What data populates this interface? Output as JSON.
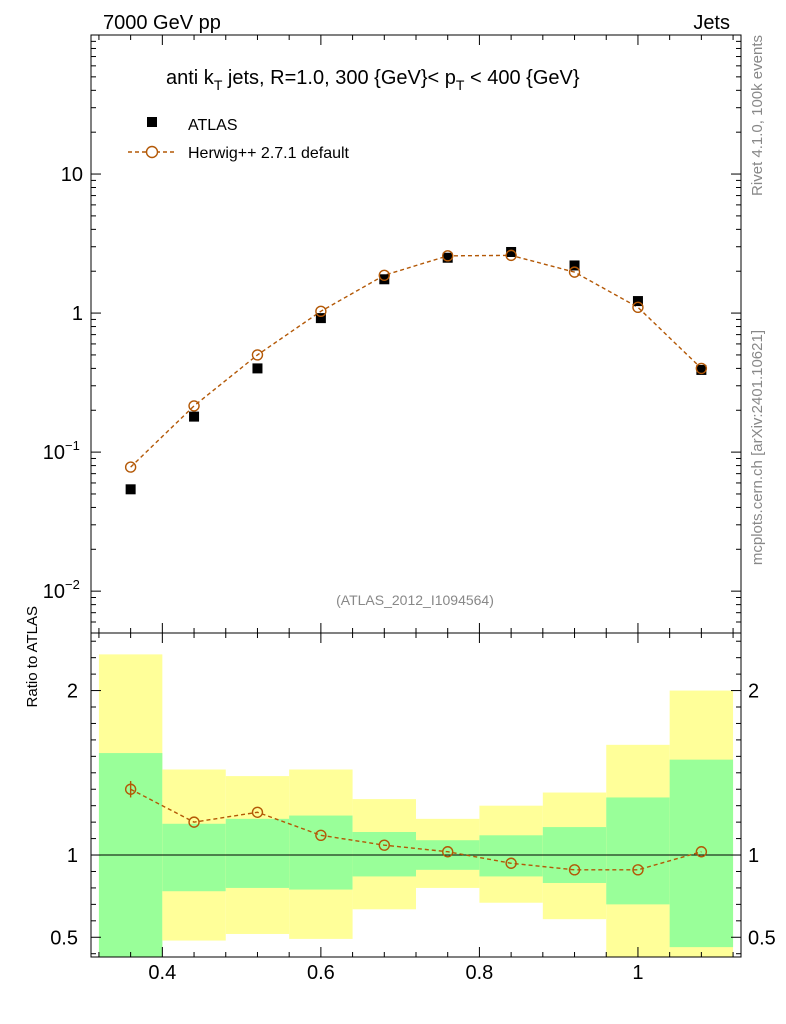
{
  "header": {
    "left": "7000 GeV pp",
    "right": "Jets"
  },
  "side_labels": {
    "rivet": "Rivet 4.1.0,  100k events",
    "mcplots": "mcplots.cern.ch [arXiv:2401.10621]"
  },
  "chart_data": {
    "type": "line",
    "title": "anti k_T jets, R=1.0,  300 {GeV}< p_T < 400 {GeV}",
    "title_parts": {
      "a": "anti k",
      "a_sub": "T",
      "b": " jets, R=1.0,  300 {GeV}< p",
      "b_sub": "T",
      "c": " < 400 {GeV}"
    },
    "watermark": "(ATLAS_2012_I1094564)",
    "xlim": [
      0.31,
      1.13
    ],
    "ylim_top": [
      0.005,
      100
    ],
    "ylim_ratio": [
      0.38,
      2.35
    ],
    "y_ticks_main": [
      {
        "value": 10,
        "label": "10",
        "sup": ""
      },
      {
        "value": 1,
        "label": "1",
        "sup": ""
      },
      {
        "value": 0.1,
        "label": "10",
        "sup": "−1"
      },
      {
        "value": 0.01,
        "label": "10",
        "sup": "−2"
      }
    ],
    "x_ticks": [
      {
        "value": 0.4,
        "label": "0.4"
      },
      {
        "value": 0.6,
        "label": "0.6"
      },
      {
        "value": 0.8,
        "label": "0.8"
      },
      {
        "value": 1.0,
        "label": "1"
      }
    ],
    "ratio_ticks": [
      {
        "value": 2,
        "label": "2"
      },
      {
        "value": 1,
        "label": "1"
      },
      {
        "value": 0.5,
        "label": "0.5"
      }
    ],
    "ratio_ylabel": "Ratio to ATLAS",
    "legend": {
      "data_label": "ATLAS",
      "mc_label": "Herwig++ 2.7.1 default",
      "placement": "top-left"
    },
    "bins": [
      {
        "low": 0.32,
        "high": 0.4,
        "x": 0.36,
        "data": 0.054,
        "mc": 0.078,
        "ratio": 1.4,
        "ratio_err": 0.05,
        "band_stat": [
          0.31,
          1.62
        ],
        "band_total": [
          0.31,
          2.22
        ]
      },
      {
        "low": 0.4,
        "high": 0.48,
        "x": 0.44,
        "data": 0.18,
        "mc": 0.215,
        "ratio": 1.2,
        "ratio_err": 0.0,
        "band_stat": [
          0.78,
          1.19
        ],
        "band_total": [
          0.48,
          1.52
        ]
      },
      {
        "low": 0.48,
        "high": 0.56,
        "x": 0.52,
        "data": 0.4,
        "mc": 0.5,
        "ratio": 1.26,
        "ratio_err": 0.0,
        "band_stat": [
          0.8,
          1.22
        ],
        "band_total": [
          0.52,
          1.48
        ]
      },
      {
        "low": 0.56,
        "high": 0.64,
        "x": 0.6,
        "data": 0.92,
        "mc": 1.03,
        "ratio": 1.12,
        "ratio_err": 0.0,
        "band_stat": [
          0.79,
          1.24
        ],
        "band_total": [
          0.49,
          1.52
        ]
      },
      {
        "low": 0.64,
        "high": 0.72,
        "x": 0.68,
        "data": 1.75,
        "mc": 1.87,
        "ratio": 1.06,
        "ratio_err": 0.0,
        "band_stat": [
          0.87,
          1.14
        ],
        "band_total": [
          0.67,
          1.34
        ]
      },
      {
        "low": 0.72,
        "high": 0.8,
        "x": 0.76,
        "data": 2.5,
        "mc": 2.58,
        "ratio": 1.02,
        "ratio_err": 0.0,
        "band_stat": [
          0.91,
          1.09
        ],
        "band_total": [
          0.8,
          1.22
        ]
      },
      {
        "low": 0.8,
        "high": 0.88,
        "x": 0.84,
        "data": 2.75,
        "mc": 2.6,
        "ratio": 0.95,
        "ratio_err": 0.0,
        "band_stat": [
          0.87,
          1.12
        ],
        "band_total": [
          0.71,
          1.3
        ]
      },
      {
        "low": 0.88,
        "high": 0.96,
        "x": 0.92,
        "data": 2.2,
        "mc": 1.97,
        "ratio": 0.91,
        "ratio_err": 0.0,
        "band_stat": [
          0.83,
          1.17
        ],
        "band_total": [
          0.61,
          1.38
        ]
      },
      {
        "low": 0.96,
        "high": 1.04,
        "x": 1.0,
        "data": 1.22,
        "mc": 1.1,
        "ratio": 0.91,
        "ratio_err": 0.0,
        "band_stat": [
          0.7,
          1.35
        ],
        "band_total": [
          0.3,
          1.67
        ]
      },
      {
        "low": 1.04,
        "high": 1.12,
        "x": 1.08,
        "data": 0.39,
        "mc": 0.4,
        "ratio": 1.02,
        "ratio_err": 0.0,
        "band_stat": [
          0.44,
          1.58
        ],
        "band_total": [
          0.3,
          2.0
        ]
      }
    ],
    "colors": {
      "mc": "#b35806",
      "data": "#000000",
      "band_stat": "#99ff99",
      "band_total": "#ffff99"
    }
  }
}
